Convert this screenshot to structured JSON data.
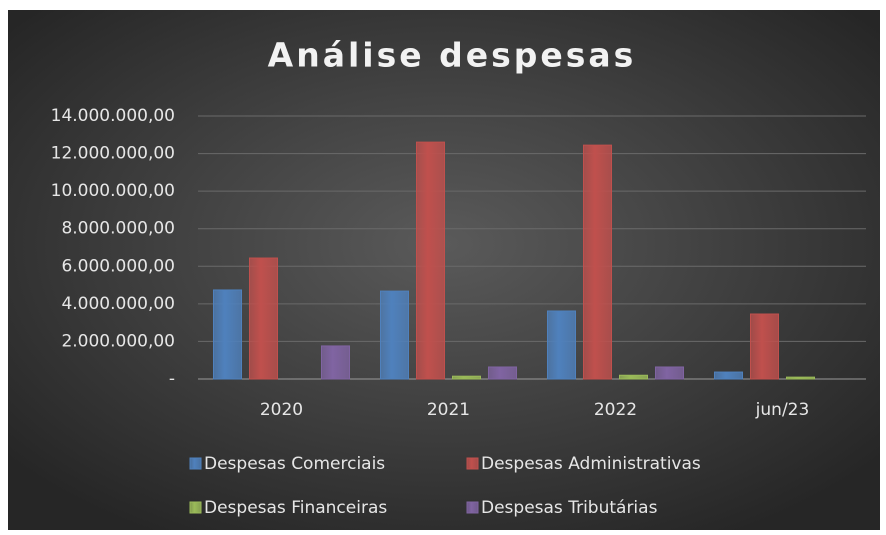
{
  "chart_data": {
    "type": "bar",
    "title": "Análise despesas",
    "categories": [
      "2020",
      "2021",
      "2022",
      "jun/23"
    ],
    "series": [
      {
        "name": "Despesas Comerciais",
        "color": "#4f81bd",
        "values": [
          4740000,
          4680000,
          3620000,
          370000
        ]
      },
      {
        "name": "Despesas Administrativas",
        "color": "#c0504d",
        "values": [
          6440000,
          12610000,
          12450000,
          3460000
        ]
      },
      {
        "name": "Despesas Financeiras",
        "color": "#9bbb59",
        "values": [
          0,
          150000,
          200000,
          100000
        ]
      },
      {
        "name": "Despesas Tributárias",
        "color": "#8064a2",
        "values": [
          1760000,
          640000,
          640000,
          0
        ]
      }
    ],
    "ylim": [
      0,
      14000000
    ],
    "yticks": [
      {
        "value": 0,
        "label": "-"
      },
      {
        "value": 2000000,
        "label": "2.000.000,00"
      },
      {
        "value": 4000000,
        "label": "4.000.000,00"
      },
      {
        "value": 6000000,
        "label": "6.000.000,00"
      },
      {
        "value": 8000000,
        "label": "8.000.000,00"
      },
      {
        "value": 10000000,
        "label": "10.000.000,00"
      },
      {
        "value": 12000000,
        "label": "12.000.000,00"
      },
      {
        "value": 14000000,
        "label": "14.000.000,00"
      }
    ],
    "grid": true
  }
}
